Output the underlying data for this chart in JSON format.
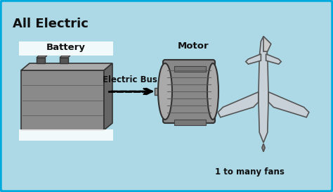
{
  "title": "All Electric",
  "bg_color": "#add8e6",
  "bg_color_outer": "#87ceeb",
  "border_color": "#00aadd",
  "title_fontsize": 13,
  "title_fontweight": "bold",
  "label_battery": "Battery",
  "label_motor": "Motor",
  "label_bus": "Electric Bus",
  "label_fans": "1 to many fans",
  "text_color": "#111111",
  "arrow_color": "#111111",
  "battery_box_color": "#888888",
  "battery_top_color": "#666666",
  "motor_color": "#999999",
  "plane_color": "#aaaaaa",
  "white_label_bg": "#ffffff"
}
